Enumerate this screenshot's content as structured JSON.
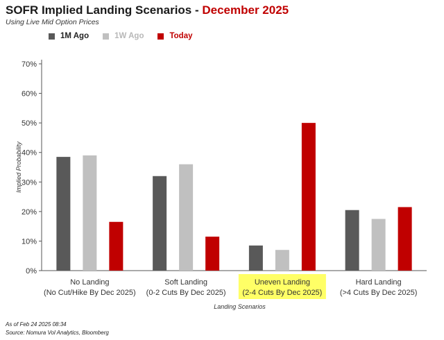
{
  "title_main": "SOFR Implied Landing Scenarios - ",
  "title_highlight": "December 2025",
  "subtitle": "Using Live Mid Option Prices",
  "footer_date": "As of Feb 24 2025 08:34",
  "footer_source": "Source: Nomura Vol Analytics, Bloomberg",
  "colors": {
    "1M Ago": "#595959",
    "1W Ago": "#c0c0c0",
    "Today": "#c00000",
    "highlight": "#ffff66"
  },
  "chart_data": {
    "type": "bar",
    "title": "SOFR Implied Landing Scenarios - December 2025",
    "subtitle": "Using Live Mid Option Prices",
    "xlabel": "Landing Scenarios",
    "ylabel": "Implied Probability",
    "ylim": [
      0,
      70
    ],
    "yticks": [
      "0%",
      "10%",
      "20%",
      "30%",
      "40%",
      "50%",
      "60%",
      "70%"
    ],
    "grid": false,
    "legend_position": "top-left",
    "categories": [
      [
        "No Landing",
        "(No Cut/Hike By Dec 2025)"
      ],
      [
        "Soft Landing",
        "(0-2 Cuts By Dec 2025)"
      ],
      [
        "Uneven Landing",
        "(2-4 Cuts By Dec 2025)"
      ],
      [
        "Hard Landing",
        "(>4 Cuts By Dec 2025)"
      ]
    ],
    "highlighted_category": 2,
    "series": [
      {
        "name": "1M Ago",
        "values": [
          38.5,
          32,
          8.5,
          20.5
        ]
      },
      {
        "name": "1W Ago",
        "values": [
          39,
          36,
          7,
          17.5
        ]
      },
      {
        "name": "Today",
        "values": [
          16.5,
          11.5,
          50,
          21.5
        ]
      }
    ]
  }
}
